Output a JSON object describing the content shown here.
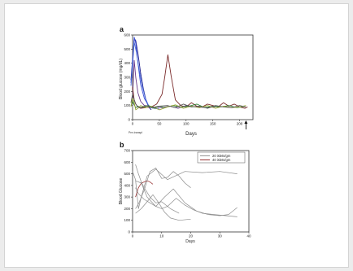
{
  "chart_data": [
    {
      "panel_label": "a",
      "type": "line",
      "xlabel": "Days",
      "ylabel": "Blood glucose (mg/dL)",
      "xlim": [
        0,
        225
      ],
      "ylim": [
        0,
        600
      ],
      "xticks": [
        0,
        50,
        100,
        150,
        200
      ],
      "yticks": [
        0,
        100,
        200,
        300,
        400,
        500,
        600
      ],
      "x_annotation": "Pre-transpl",
      "arrow_at_x": 212,
      "series": [
        {
          "color": "#1a1a8c",
          "x": [
            -3,
            0,
            3,
            6,
            10,
            15,
            20,
            25,
            30,
            35
          ],
          "y": [
            280,
            430,
            575,
            560,
            470,
            330,
            220,
            140,
            90,
            70
          ]
        },
        {
          "color": "#3b4fd6",
          "x": [
            -3,
            0,
            3,
            6,
            10,
            15,
            22,
            30,
            40,
            50
          ],
          "y": [
            260,
            400,
            585,
            540,
            400,
            250,
            150,
            100,
            80,
            75
          ]
        },
        {
          "color": "#4a6ad8",
          "x": [
            -3,
            0,
            3,
            7,
            12,
            18,
            24,
            30,
            38
          ],
          "y": [
            240,
            380,
            550,
            480,
            360,
            240,
            150,
            100,
            80
          ]
        },
        {
          "color": "#6b3b8c",
          "x": [
            0,
            3,
            6,
            10,
            15,
            22,
            30,
            40,
            55,
            70,
            85,
            100,
            120,
            140,
            160
          ],
          "y": [
            150,
            420,
            300,
            190,
            130,
            100,
            95,
            90,
            85,
            95,
            80,
            100,
            90,
            85,
            95
          ]
        },
        {
          "color": "#7a2a2a",
          "x": [
            0,
            3,
            6,
            10,
            15,
            25,
            35,
            45,
            55,
            60,
            66,
            72,
            80,
            90,
            100,
            110,
            120,
            130,
            140,
            150,
            160,
            170,
            180,
            190,
            200,
            210,
            215
          ],
          "y": [
            230,
            140,
            110,
            90,
            80,
            85,
            90,
            110,
            180,
            300,
            460,
            310,
            140,
            100,
            90,
            120,
            95,
            90,
            110,
            100,
            90,
            120,
            95,
            110,
            90,
            80,
            90
          ]
        },
        {
          "color": "#2e7d32",
          "x": [
            -3,
            0,
            3,
            6,
            10,
            15,
            22,
            30,
            40,
            50,
            60,
            75,
            90,
            105,
            120,
            135,
            150,
            165,
            180,
            195,
            210
          ],
          "y": [
            100,
            130,
            105,
            85,
            95,
            85,
            90,
            100,
            80,
            95,
            85,
            100,
            90,
            95,
            110,
            85,
            95,
            90,
            100,
            85,
            95
          ]
        },
        {
          "color": "#9aa83a",
          "x": [
            -3,
            0,
            3,
            6,
            10,
            15,
            25,
            35,
            50,
            65,
            80,
            95,
            110,
            125,
            140,
            155,
            170,
            185,
            200,
            212
          ],
          "y": [
            90,
            150,
            120,
            70,
            80,
            100,
            85,
            95,
            70,
            90,
            105,
            80,
            95,
            85,
            100,
            80,
            95,
            85,
            90,
            100
          ]
        },
        {
          "color": "#555555",
          "x": [
            -3,
            0,
            3,
            6,
            10,
            15,
            25,
            35,
            50,
            65,
            80,
            95,
            110,
            125,
            140,
            155,
            170,
            185,
            200,
            212
          ],
          "y": [
            120,
            180,
            140,
            110,
            90,
            85,
            100,
            85,
            95,
            100,
            85,
            110,
            90,
            95,
            80,
            100,
            90,
            85,
            100,
            90
          ]
        }
      ]
    },
    {
      "panel_label": "b",
      "type": "line",
      "xlabel": "Days",
      "ylabel": "Blood Glucose",
      "xlim": [
        0,
        40
      ],
      "ylim": [
        0,
        700
      ],
      "xticks": [
        0,
        10,
        20,
        30,
        40
      ],
      "yticks": [
        0,
        100,
        200,
        300,
        400,
        500,
        600,
        700
      ],
      "series": [
        {
          "name": "20 islets/gm",
          "color": "#8c8c8c",
          "x": [
            0,
            1,
            2,
            3,
            5,
            8,
            12,
            18,
            24,
            30,
            36
          ],
          "y": [
            520,
            450,
            200,
            300,
            480,
            540,
            450,
            520,
            510,
            520,
            500
          ]
        },
        {
          "name": "40 islets/gm",
          "color": "#8b1a1a",
          "x": [
            1,
            2,
            3,
            4,
            5,
            6,
            7
          ],
          "y": [
            300,
            380,
            420,
            430,
            440,
            430,
            410
          ]
        },
        {
          "color": "#8c8c8c",
          "x": [
            1,
            2,
            3,
            4,
            6,
            8,
            10,
            13,
            16
          ],
          "y": [
            580,
            500,
            430,
            380,
            300,
            250,
            260,
            200,
            160
          ]
        },
        {
          "color": "#8c8c8c",
          "x": [
            1,
            2,
            4,
            6,
            8,
            10,
            12,
            14,
            16,
            18,
            20
          ],
          "y": [
            200,
            240,
            360,
            520,
            550,
            460,
            470,
            520,
            480,
            420,
            380
          ]
        },
        {
          "color": "#8c8c8c",
          "x": [
            1,
            3,
            5,
            8,
            11,
            14,
            18,
            22,
            26,
            30,
            33,
            36
          ],
          "y": [
            440,
            420,
            300,
            220,
            300,
            370,
            250,
            180,
            150,
            140,
            150,
            210
          ]
        },
        {
          "color": "#8c8c8c",
          "x": [
            1,
            3,
            5,
            7,
            9,
            11,
            13,
            16,
            20
          ],
          "y": [
            160,
            200,
            260,
            320,
            250,
            170,
            120,
            100,
            110
          ]
        },
        {
          "color": "#8c8c8c",
          "x": [
            1,
            2,
            4,
            6,
            8,
            10,
            12,
            15,
            18,
            21,
            24,
            28,
            32,
            36
          ],
          "y": [
            380,
            330,
            280,
            250,
            220,
            200,
            220,
            290,
            230,
            190,
            160,
            150,
            140,
            130
          ]
        }
      ]
    }
  ]
}
